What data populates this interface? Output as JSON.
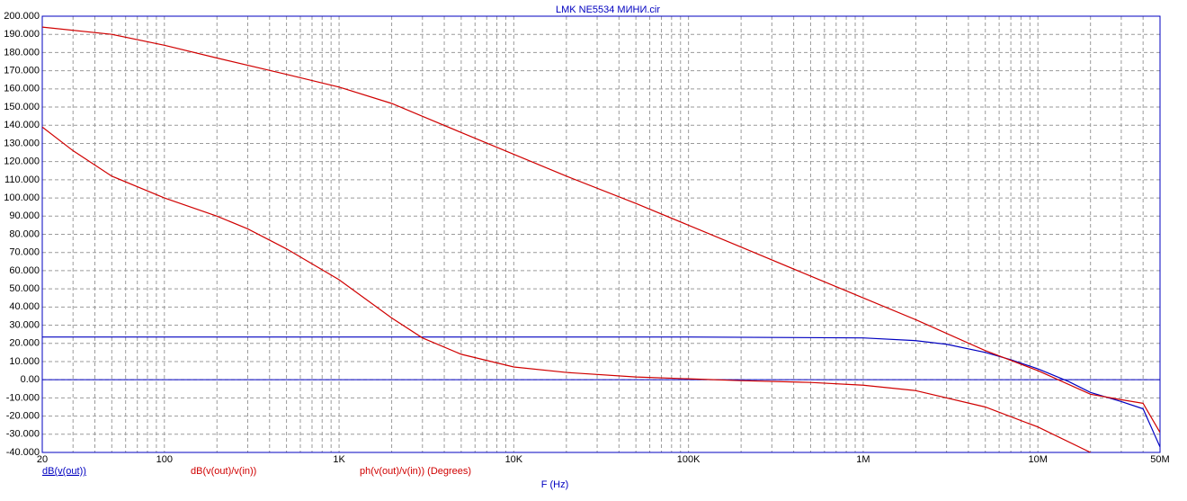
{
  "chart_data": {
    "type": "line",
    "title": "LMK NE5534 МИНИ.cir",
    "x_label": "F (Hz)",
    "log_x": true,
    "grid": true,
    "xlim": [
      20,
      50000000
    ],
    "xticks": [
      20,
      100,
      {
        "value": 1000,
        "label": "1K"
      },
      {
        "value": 10000,
        "label": "10K"
      },
      {
        "value": 100000,
        "label": "100K"
      },
      {
        "value": 1000000,
        "label": "1M"
      },
      {
        "value": 10000000,
        "label": "10M"
      },
      {
        "value": 50000000,
        "label": "50M"
      }
    ],
    "ylim": [
      -40,
      200
    ],
    "yticks": [
      {
        "value": -40,
        "label": "-40.000"
      },
      {
        "value": -30,
        "label": "-30.000"
      },
      {
        "value": -20,
        "label": "-20.000"
      },
      {
        "value": -10,
        "label": "-10.000"
      },
      {
        "value": 0,
        "label": "0.00"
      },
      {
        "value": 10,
        "label": "10.000"
      },
      {
        "value": 20,
        "label": "20.000"
      },
      {
        "value": 30,
        "label": "30.000"
      },
      {
        "value": 40,
        "label": "40.000"
      },
      {
        "value": 50,
        "label": "50.000"
      },
      {
        "value": 60,
        "label": "60.000"
      },
      {
        "value": 70,
        "label": "70.000"
      },
      {
        "value": 80,
        "label": "80.000"
      },
      {
        "value": 90,
        "label": "90.000"
      },
      {
        "value": 100,
        "label": "100.000"
      },
      {
        "value": 110,
        "label": "110.000"
      },
      {
        "value": 120,
        "label": "120.000"
      },
      {
        "value": 130,
        "label": "130.000"
      },
      {
        "value": 140,
        "label": "140.000"
      },
      {
        "value": 150,
        "label": "150.000"
      },
      {
        "value": 160,
        "label": "160.000"
      },
      {
        "value": 170,
        "label": "170.000"
      },
      {
        "value": 180,
        "label": "180.000"
      },
      {
        "value": 190,
        "label": "190.000"
      },
      {
        "value": 200,
        "label": "200.000"
      }
    ],
    "series": [
      {
        "name": "dB(v(out))",
        "color": "#0000c0",
        "x": [
          20,
          1000,
          100000,
          1000000,
          2000000,
          3000000,
          5000000,
          7000000,
          10000000,
          15000000,
          20000000,
          30000000,
          40000000,
          50000000
        ],
        "values": [
          23.5,
          23.5,
          23.5,
          23,
          21.5,
          19.5,
          15,
          11,
          6,
          -1,
          -7,
          -12,
          -16,
          -37
        ]
      },
      {
        "name": "dB(v(out)/v(in))",
        "color": "#d00000",
        "x": [
          20,
          50,
          100,
          200,
          500,
          1000,
          2000,
          5000,
          10000,
          20000,
          50000,
          100000,
          200000,
          500000,
          1000000,
          2000000,
          5000000,
          10000000,
          20000000,
          30000000,
          40000000,
          50000000
        ],
        "values": [
          194,
          190,
          184,
          177,
          168,
          161,
          152,
          136,
          124,
          112,
          97,
          85,
          73,
          57,
          45,
          33,
          16,
          5,
          -8,
          -11,
          -13,
          -29
        ]
      },
      {
        "name": "ph(v(out)/v(in)) (Degrees)",
        "color": "#d00000",
        "x": [
          20,
          30,
          50,
          100,
          200,
          300,
          500,
          1000,
          2000,
          3000,
          5000,
          10000,
          20000,
          50000,
          100000,
          200000,
          500000,
          1000000,
          2000000,
          5000000,
          10000000,
          20000000
        ],
        "values": [
          139,
          126,
          112,
          100,
          90,
          83,
          72,
          55,
          34,
          23,
          14,
          7,
          4,
          1.5,
          0.5,
          -0.5,
          -1.5,
          -3,
          -6,
          -15,
          -26,
          -40
        ]
      }
    ]
  }
}
